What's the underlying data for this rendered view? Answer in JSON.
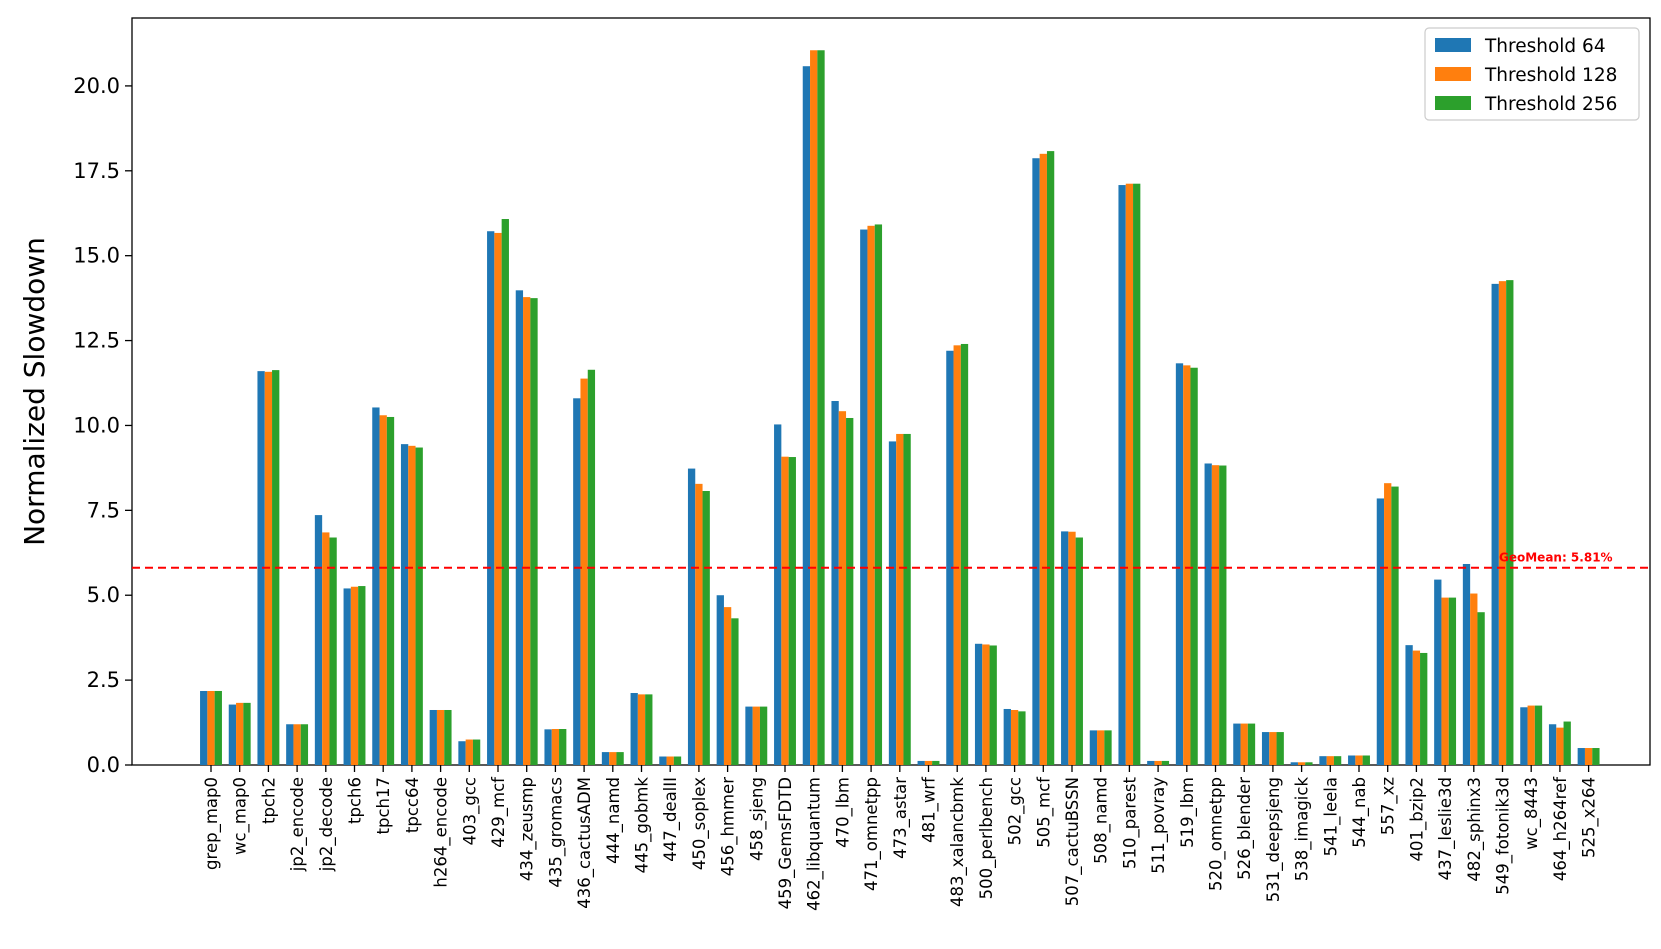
{
  "chart_data": {
    "type": "bar",
    "title": "",
    "xlabel": "",
    "ylabel": "Normalized Slowdown",
    "ylim": [
      0,
      22
    ],
    "yticks": [
      "0.0",
      "2.5",
      "5.0",
      "7.5",
      "10.0",
      "12.5",
      "15.0",
      "17.5",
      "20.0"
    ],
    "ytick_values": [
      0,
      2.5,
      5,
      7.5,
      10,
      12.5,
      15,
      17.5,
      20
    ],
    "grid": false,
    "legend_position": "top-right",
    "categories": [
      "grep_map0",
      "wc_map0",
      "tpch2",
      "jp2_encode",
      "jp2_decode",
      "tpch6",
      "tpch17",
      "tpcc64",
      "h264_encode",
      "403_gcc",
      "429_mcf",
      "434_zeusmp",
      "435_gromacs",
      "436_cactusADM",
      "444_namd",
      "445_gobmk",
      "447_dealII",
      "450_soplex",
      "456_hmmer",
      "458_sjeng",
      "459_GemsFDTD",
      "462_libquantum",
      "470_lbm",
      "471_omnetpp",
      "473_astar",
      "481_wrf",
      "483_xalancbmk",
      "500_perlbench",
      "502_gcc",
      "505_mcf",
      "507_cactuBSSN",
      "508_namd",
      "510_parest",
      "511_povray",
      "519_lbm",
      "520_omnetpp",
      "526_blender",
      "531_deepsjeng",
      "538_imagick",
      "541_leela",
      "544_nab",
      "557_xz",
      "401_bzip2",
      "437_leslie3d",
      "482_sphinx3",
      "549_fotonik3d",
      "wc_8443",
      "464_h264ref",
      "525_x264"
    ],
    "series": [
      {
        "name": "Threshold 64",
        "color": "#1f77b4",
        "values": [
          2.18,
          1.78,
          11.6,
          1.2,
          7.36,
          5.2,
          10.53,
          9.45,
          1.62,
          0.7,
          15.72,
          13.98,
          1.05,
          10.8,
          0.38,
          2.12,
          0.25,
          8.73,
          5.0,
          1.72,
          10.03,
          20.58,
          10.72,
          15.77,
          9.53,
          0.12,
          12.2,
          3.57,
          1.65,
          17.87,
          6.88,
          1.02,
          17.08,
          0.12,
          11.83,
          8.88,
          1.22,
          0.97,
          0.08,
          0.26,
          0.28,
          7.85,
          3.53,
          5.46,
          5.92,
          14.17,
          1.7,
          1.2,
          0.5
        ]
      },
      {
        "name": "Threshold 128",
        "color": "#ff7f0e",
        "values": [
          2.18,
          1.83,
          11.58,
          1.2,
          6.85,
          5.25,
          10.3,
          9.4,
          1.62,
          0.75,
          15.67,
          13.78,
          1.06,
          11.38,
          0.38,
          2.08,
          0.25,
          8.28,
          4.65,
          1.72,
          9.08,
          21.05,
          10.42,
          15.88,
          9.75,
          0.12,
          12.36,
          3.55,
          1.62,
          18.0,
          6.87,
          1.02,
          17.12,
          0.12,
          11.77,
          8.83,
          1.22,
          0.97,
          0.08,
          0.26,
          0.28,
          8.3,
          3.37,
          4.93,
          5.05,
          14.25,
          1.75,
          1.1,
          0.5
        ]
      },
      {
        "name": "Threshold 256",
        "color": "#2ca02c",
        "values": [
          2.18,
          1.83,
          11.63,
          1.2,
          6.7,
          5.27,
          10.25,
          9.35,
          1.62,
          0.75,
          16.08,
          13.75,
          1.06,
          11.64,
          0.38,
          2.08,
          0.25,
          8.07,
          4.32,
          1.72,
          9.07,
          21.05,
          10.22,
          15.92,
          9.75,
          0.12,
          12.4,
          3.52,
          1.58,
          18.08,
          6.7,
          1.02,
          17.12,
          0.12,
          11.7,
          8.82,
          1.22,
          0.97,
          0.08,
          0.26,
          0.28,
          8.2,
          3.3,
          4.93,
          4.5,
          14.28,
          1.75,
          1.28,
          0.5
        ]
      }
    ],
    "reference_line": {
      "value": 5.81,
      "label": "GeoMean: 5.81%",
      "color": "#ff0000",
      "style": "dashed"
    }
  }
}
